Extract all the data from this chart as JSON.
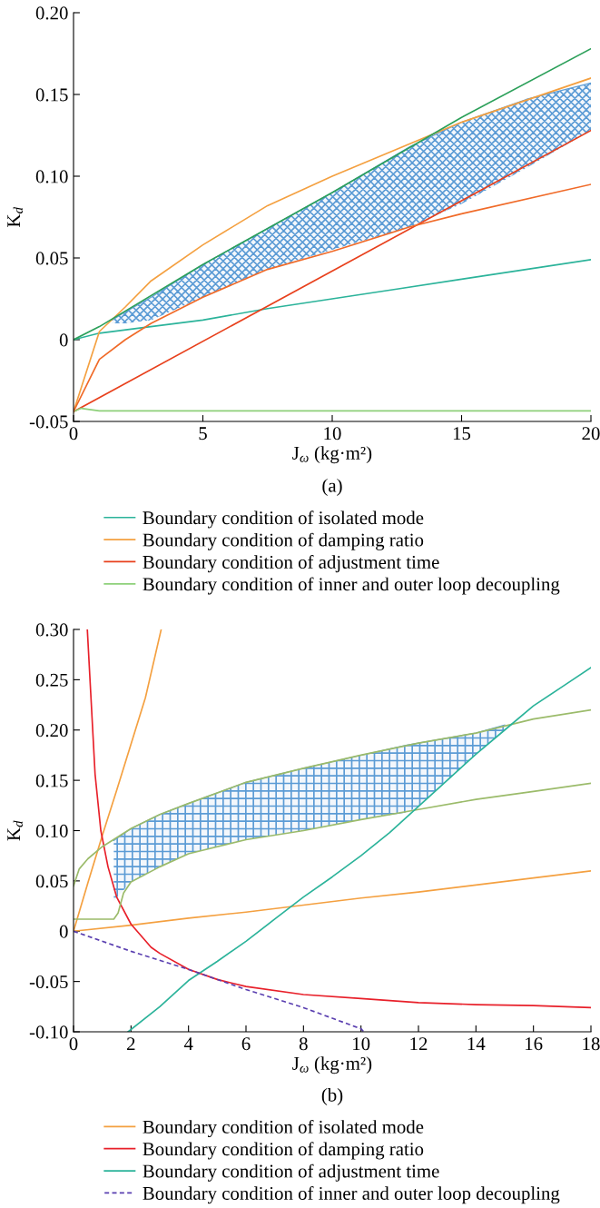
{
  "chart_data": [
    {
      "type": "line",
      "xlabel": "J$_{ω}$ (kg·m²)",
      "ylabel": "K$_{d}$",
      "annotations": [
        "(a)"
      ],
      "xlim": [
        0,
        20
      ],
      "ylim": [
        -0.05,
        0.2
      ],
      "xticks": [
        0,
        5,
        10,
        15,
        20
      ],
      "yticks": [
        {
          "value": -0.05,
          "label": "-0.05"
        },
        0,
        {
          "value": 0.05,
          "label": "0.05"
        },
        {
          "value": 0.1,
          "label": "0.10"
        },
        {
          "value": 0.15,
          "label": "0.15"
        },
        {
          "value": 0.2,
          "label": "0.20"
        }
      ],
      "grid": false,
      "legend": "bottom",
      "series": [
        {
          "type": "line",
          "color": "#5b9bd5",
          "x": [
            1.5,
            2,
            3,
            5,
            7.5,
            10,
            13,
            15,
            17.5,
            20
          ],
          "values": [
            0.012,
            0.017,
            0.026,
            0.046,
            0.068,
            0.09,
            0.118,
            0.133,
            0.147,
            0.157
          ],
          "upper": [
            0.012,
            0.017,
            0.026,
            0.046,
            0.068,
            0.09,
            0.118,
            0.133,
            0.147,
            0.157
          ],
          "lower": [
            0.01,
            0.01,
            0.012,
            0.026,
            0.043,
            0.055,
            0.069,
            0.083,
            0.105,
            0.128
          ]
        },
        {
          "name": "Boundary condition of isolated mode",
          "color": "#2bb39a",
          "x": [
            0,
            1,
            2.5,
            5,
            7.5,
            10,
            12.5,
            15,
            17.5,
            20
          ],
          "values": [
            0,
            0.004,
            0.007,
            0.012,
            0.019,
            0.025,
            0.031,
            0.037,
            0.043,
            0.049
          ]
        },
        {
          "name": "Boundary condition of damping ratio",
          "color": "#f4a040",
          "x": [
            0,
            1,
            2,
            3,
            5,
            7.5,
            10,
            15,
            20
          ],
          "values": [
            -0.044,
            0.005,
            0.02,
            0.036,
            0.058,
            0.082,
            0.1,
            0.133,
            0.16
          ]
        },
        {
          "name": "Boundary condition of adjustment time",
          "color": "#e8401c",
          "x": [
            0,
            20
          ],
          "values": [
            -0.044,
            0.128
          ]
        },
        {
          "name": "Boundary condition of inner and outer loop decoupling",
          "color": "#8ed07a",
          "x": [
            0,
            0.3,
            1,
            20
          ],
          "values": [
            -0.044,
            -0.042,
            -0.0435,
            -0.0435
          ]
        },
        {
          "color": "#2ca05a",
          "x": [
            0,
            1,
            5,
            10,
            15,
            20
          ],
          "values": [
            0,
            0.008,
            0.046,
            0.09,
            0.136,
            0.178
          ]
        },
        {
          "color": "#f06a28",
          "x": [
            0,
            1,
            2,
            3,
            5,
            7.5,
            10,
            13,
            15,
            20
          ],
          "values": [
            -0.044,
            -0.012,
            0,
            0.01,
            0.026,
            0.043,
            0.054,
            0.069,
            0.077,
            0.095
          ]
        }
      ]
    },
    {
      "type": "line",
      "xlabel": "J$_{ω}$ (kg·m²)",
      "ylabel": "K$_{d}$",
      "annotations": [
        "(b)"
      ],
      "xlim": [
        0,
        18
      ],
      "ylim": [
        -0.1,
        0.3
      ],
      "xticks": [
        0,
        2,
        4,
        6,
        8,
        10,
        12,
        14,
        16,
        18
      ],
      "yticks": [
        {
          "value": -0.1,
          "label": "-0.10"
        },
        {
          "value": -0.05,
          "label": "-0.05"
        },
        0,
        {
          "value": 0.05,
          "label": "0.05"
        },
        {
          "value": 0.1,
          "label": "0.10"
        },
        {
          "value": 0.15,
          "label": "0.15"
        },
        {
          "value": 0.2,
          "label": "0.20"
        },
        {
          "value": 0.25,
          "label": "0.25"
        },
        {
          "value": 0.3,
          "label": "0.30"
        }
      ],
      "grid": false,
      "legend": "bottom",
      "series": [
        {
          "type": "line",
          "color": "#5b9bd5",
          "x": [
            1.4,
            2,
            3,
            4,
            6,
            8,
            10,
            11.6,
            12,
            13,
            14,
            15
          ],
          "values": [
            0.09,
            0.102,
            0.116,
            0.127,
            0.148,
            0.162,
            0.175,
            0.185,
            0.187,
            0.192,
            0.197,
            0.205
          ],
          "upper": [
            0.09,
            0.102,
            0.116,
            0.127,
            0.148,
            0.162,
            0.175,
            0.185,
            0.187,
            0.192,
            0.197,
            0.205
          ],
          "lower": [
            0.03,
            0.049,
            0.064,
            0.077,
            0.091,
            0.1,
            0.111,
            0.118,
            0.124,
            0.15,
            0.176,
            0.2
          ]
        },
        {
          "name": "Boundary condition of isolated mode",
          "color": "#f4a040",
          "x": [
            0,
            0.5,
            1,
            1.5,
            2,
            2.5,
            3.05
          ],
          "values": [
            0,
            0.048,
            0.095,
            0.14,
            0.186,
            0.232,
            0.3
          ]
        },
        {
          "color": "#f4a040",
          "x": [
            0,
            2,
            4,
            6,
            8,
            10,
            12,
            14,
            16,
            18
          ],
          "values": [
            0,
            0.006,
            0.013,
            0.019,
            0.026,
            0.033,
            0.039,
            0.046,
            0.053,
            0.06
          ]
        },
        {
          "name": "Boundary condition of damping ratio",
          "color": "#e8202a",
          "x": [
            0.48,
            0.75,
            0.95,
            1.2,
            1.5,
            2,
            2.7,
            3,
            4,
            5,
            6,
            8,
            10,
            12,
            14,
            16,
            18
          ],
          "values": [
            0.3,
            0.156,
            0.1,
            0.064,
            0.034,
            0.007,
            -0.016,
            -0.022,
            -0.038,
            -0.048,
            -0.055,
            -0.063,
            -0.067,
            -0.071,
            -0.073,
            -0.074,
            -0.076
          ]
        },
        {
          "color": "#9bbb6a",
          "x": [
            0,
            0.2,
            0.5,
            1,
            1.5,
            2,
            3,
            4,
            6,
            8,
            10,
            12,
            14,
            16,
            18
          ],
          "values": [
            0.045,
            0.062,
            0.072,
            0.084,
            0.093,
            0.102,
            0.116,
            0.127,
            0.148,
            0.162,
            0.175,
            0.187,
            0.197,
            0.211,
            0.22
          ]
        },
        {
          "color": "#9bbb6a",
          "x": [
            0,
            1.4,
            1.55,
            1.74,
            2,
            3,
            4,
            6,
            8,
            10,
            12,
            14,
            16,
            18
          ],
          "values": [
            0.012,
            0.012,
            0.018,
            0.038,
            0.049,
            0.064,
            0.077,
            0.091,
            0.1,
            0.111,
            0.121,
            0.131,
            0.139,
            0.147
          ]
        },
        {
          "name": "Boundary condition of adjustment time",
          "color": "#2bb39a",
          "x": [
            1.9,
            3,
            4,
            5,
            6,
            7,
            8,
            9,
            10,
            11,
            12,
            13,
            14,
            15,
            16,
            17,
            18
          ],
          "values": [
            -0.1,
            -0.075,
            -0.049,
            -0.03,
            -0.01,
            0.012,
            0.034,
            0.054,
            0.075,
            0.098,
            0.124,
            0.15,
            0.176,
            0.2,
            0.224,
            0.243,
            0.262
          ]
        },
        {
          "name": "Boundary condition of inner and outer loop decoupling",
          "color": "#5a3fb0",
          "line_style": "dashed",
          "x": [
            0,
            2,
            4,
            6,
            8,
            10,
            10.1
          ],
          "values": [
            0,
            -0.02,
            -0.038,
            -0.058,
            -0.076,
            -0.097,
            -0.1
          ]
        }
      ]
    }
  ]
}
